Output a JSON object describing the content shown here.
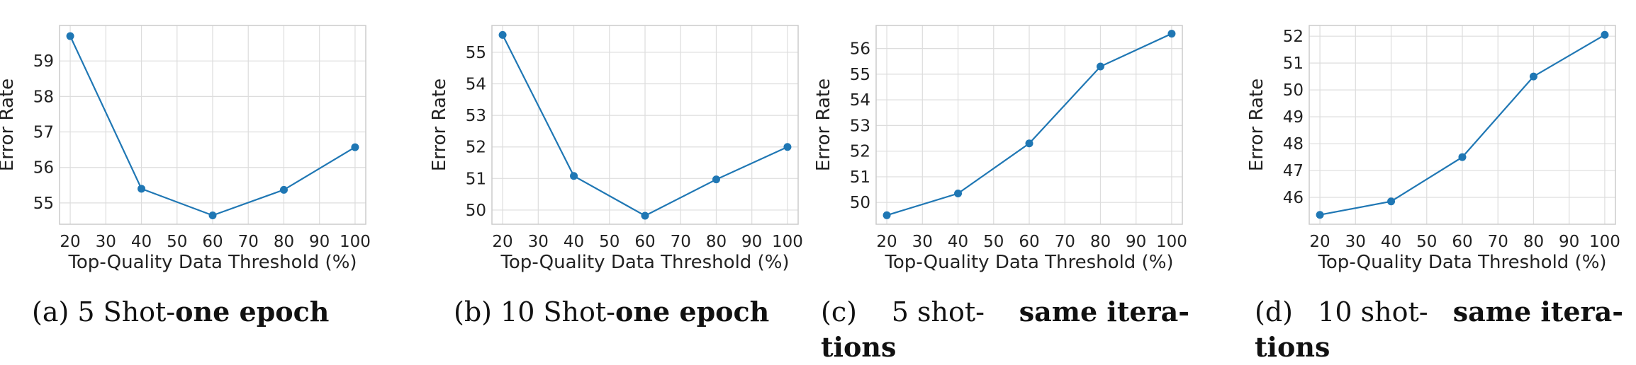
{
  "colors": {
    "series": "#1f77b4",
    "grid": "#dddddd",
    "axis": "#cccccc",
    "text": "#222222"
  },
  "captions": [
    {
      "label": "(a)",
      "prefix": "5 Shot-",
      "bold": "one epoch",
      "line2": ""
    },
    {
      "label": "(b)",
      "prefix": "10 Shot-",
      "bold": "one epoch",
      "line2": ""
    },
    {
      "label": "(c)",
      "prefix": "5 shot-",
      "bold": "same itera-",
      "line2": "tions"
    },
    {
      "label": "(d)",
      "prefix": "10 shot-",
      "bold": "same itera-",
      "line2": "tions"
    }
  ],
  "chart_data": [
    {
      "type": "line",
      "xlabel": "Top-Quality Data Threshold (%)",
      "ylabel": "Error Rate",
      "x": [
        20,
        40,
        60,
        80,
        100
      ],
      "series": [
        {
          "values": [
            59.7,
            55.4,
            54.65,
            55.37,
            56.57
          ]
        }
      ],
      "xticks": [
        20,
        30,
        40,
        50,
        60,
        70,
        80,
        90,
        100
      ],
      "yticks": [
        55,
        56,
        57,
        58,
        59
      ],
      "xlim": [
        17,
        103
      ],
      "ylim": [
        54.4,
        60.0
      ],
      "grid": true
    },
    {
      "type": "line",
      "xlabel": "Top-Quality Data Threshold (%)",
      "ylabel": "Error Rate",
      "x": [
        20,
        40,
        60,
        80,
        100
      ],
      "series": [
        {
          "values": [
            55.55,
            51.08,
            49.82,
            50.97,
            52.0
          ]
        }
      ],
      "xticks": [
        20,
        30,
        40,
        50,
        60,
        70,
        80,
        90,
        100
      ],
      "yticks": [
        50,
        51,
        52,
        53,
        54,
        55
      ],
      "xlim": [
        17,
        103
      ],
      "ylim": [
        49.55,
        55.85
      ],
      "grid": true
    },
    {
      "type": "line",
      "xlabel": "Top-Quality Data Threshold (%)",
      "ylabel": "Error Rate",
      "x": [
        20,
        40,
        60,
        80,
        100
      ],
      "series": [
        {
          "values": [
            49.5,
            50.35,
            52.3,
            55.3,
            56.58
          ]
        }
      ],
      "xticks": [
        20,
        30,
        40,
        50,
        60,
        70,
        80,
        90,
        100
      ],
      "yticks": [
        50,
        51,
        52,
        53,
        54,
        55,
        56
      ],
      "xlim": [
        17,
        103
      ],
      "ylim": [
        49.15,
        56.9
      ],
      "grid": true
    },
    {
      "type": "line",
      "xlabel": "Top-Quality Data Threshold (%)",
      "ylabel": "Error Rate",
      "x": [
        20,
        40,
        60,
        80,
        100
      ],
      "series": [
        {
          "values": [
            45.35,
            45.85,
            47.5,
            50.5,
            52.05
          ]
        }
      ],
      "xticks": [
        20,
        30,
        40,
        50,
        60,
        70,
        80,
        90,
        100
      ],
      "yticks": [
        46,
        47,
        48,
        49,
        50,
        51,
        52
      ],
      "xlim": [
        17,
        103
      ],
      "ylim": [
        45.0,
        52.4
      ],
      "grid": true
    }
  ]
}
